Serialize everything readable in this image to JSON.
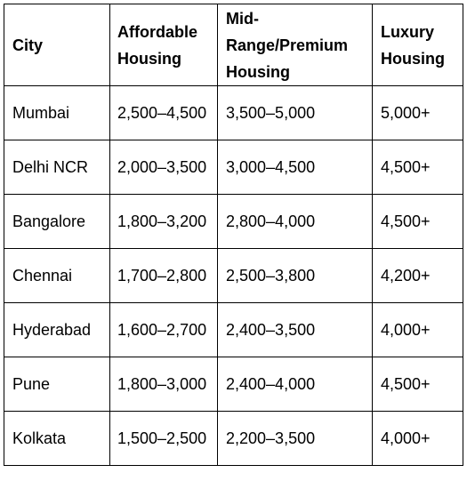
{
  "table": {
    "headers": [
      "City",
      "Affordable Housing",
      "Mid-Range/Premium Housing",
      "Luxury Housing"
    ],
    "rows": [
      [
        "Mumbai",
        "2,500–4,500",
        "3,500–5,000",
        "5,000+"
      ],
      [
        "Delhi NCR",
        "2,000–3,500",
        "3,000–4,500",
        "4,500+"
      ],
      [
        "Bangalore",
        "1,800–3,200",
        "2,800–4,000",
        "4,500+"
      ],
      [
        "Chennai",
        "1,700–2,800",
        "2,500–3,800",
        "4,200+"
      ],
      [
        "Hyderabad",
        "1,600–2,700",
        "2,400–3,500",
        "4,000+"
      ],
      [
        "Pune",
        "1,800–3,000",
        "2,400–4,000",
        "4,500+"
      ],
      [
        "Kolkata",
        "1,500–2,500",
        "2,200–3,500",
        "4,000+"
      ]
    ]
  }
}
